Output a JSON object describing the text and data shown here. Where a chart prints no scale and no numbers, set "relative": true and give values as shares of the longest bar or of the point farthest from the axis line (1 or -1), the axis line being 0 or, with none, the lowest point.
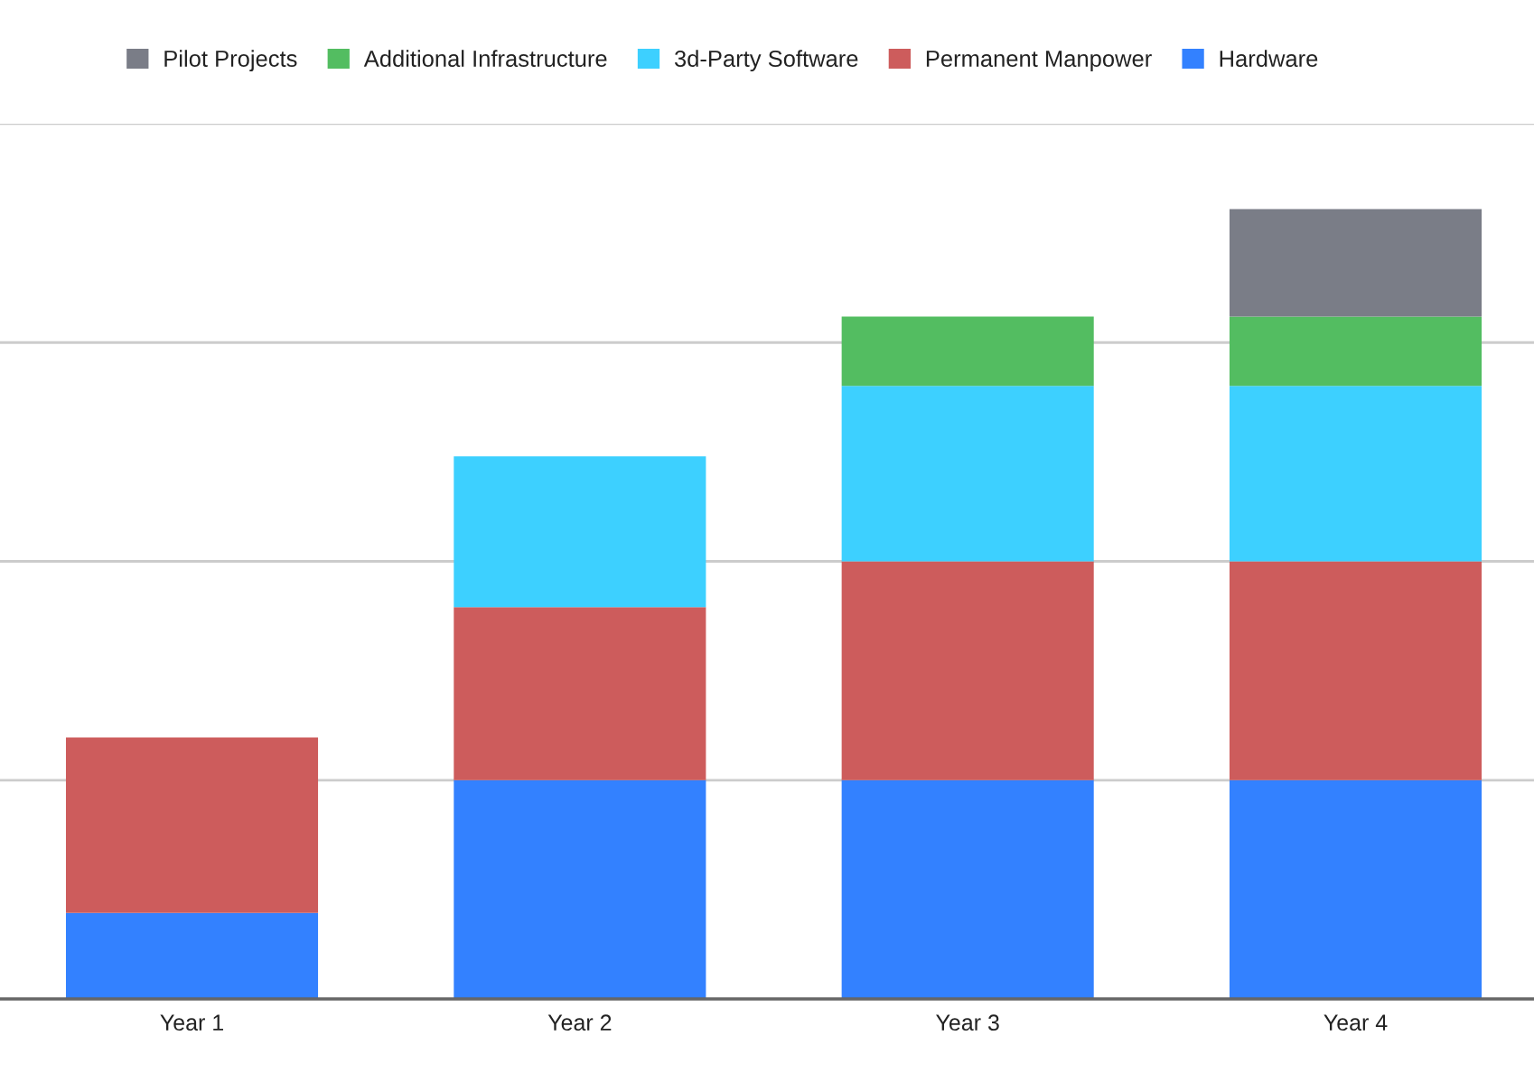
{
  "chart_data": {
    "type": "bar",
    "stacked": true,
    "relative": true,
    "categories": [
      "Year 1",
      "Year 2",
      "Year 3",
      "Year 4"
    ],
    "series": [
      {
        "name": "Hardware",
        "color": "#3381ff",
        "values": [
          0.109,
          0.277,
          0.277,
          0.277
        ]
      },
      {
        "name": "Permanent Manpower",
        "color": "#cd5c5c",
        "values": [
          0.222,
          0.219,
          0.277,
          0.277
        ]
      },
      {
        "name": "3d-Party Software",
        "color": "#3dd0ff",
        "values": [
          null,
          0.191,
          0.222,
          0.222
        ]
      },
      {
        "name": "Additional Infrastructure",
        "color": "#53bd61",
        "values": [
          null,
          null,
          0.088,
          0.088
        ]
      },
      {
        "name": "Pilot Projects",
        "color": "#7a7d87",
        "values": [
          null,
          null,
          null,
          0.136
        ]
      }
    ],
    "ref_lines": [
      {
        "axis": "y",
        "value": 0.277,
        "color": "#cccccc"
      },
      {
        "axis": "y",
        "value": 0.554,
        "color": "#cccccc"
      },
      {
        "axis": "y",
        "value": 0.831,
        "color": "#cccccc"
      },
      {
        "axis": "y",
        "value": 1.108,
        "color": "#cccccc"
      }
    ],
    "legend": "top"
  }
}
